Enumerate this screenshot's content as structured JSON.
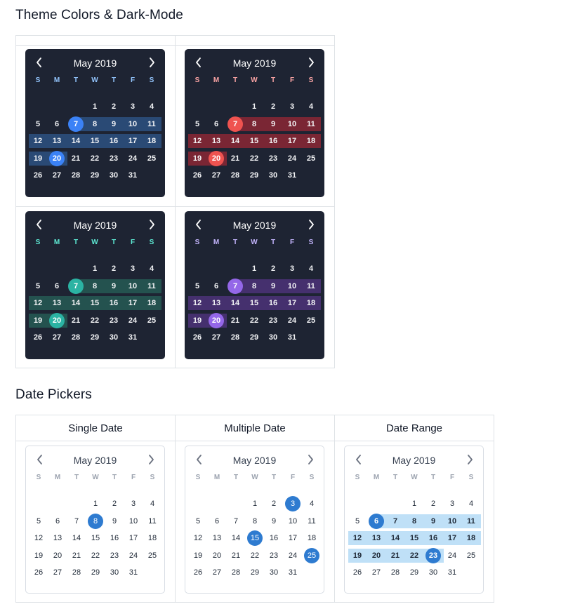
{
  "sections": {
    "theme": {
      "title": "Theme Colors & Dark-Mode"
    },
    "pickers": {
      "title": "Date Pickers"
    }
  },
  "calendar": {
    "title": "May 2019",
    "weekdays": [
      "S",
      "M",
      "T",
      "W",
      "T",
      "F",
      "S"
    ],
    "first_weekday_offset": 3,
    "days_in_month": 31,
    "prev_icon": "chevron-left-icon",
    "next_icon": "chevron-right-icon"
  },
  "theme_calendars": [
    {
      "name": "blue",
      "band_color": "#2a4a75",
      "accent": "#3b82f6",
      "weekday_color": "#93c5fd",
      "highlight_start": 7,
      "highlight_end": 20
    },
    {
      "name": "red",
      "band_color": "#7a2634",
      "accent": "#ef5350",
      "weekday_color": "#fca5a5",
      "highlight_start": 7,
      "highlight_end": 20
    },
    {
      "name": "teal",
      "band_color": "#24524f",
      "accent": "#2bb3a3",
      "weekday_color": "#5eead4",
      "highlight_start": 7,
      "highlight_end": 20
    },
    {
      "name": "purple",
      "band_color": "#45306e",
      "accent": "#9467e8",
      "weekday_color": "#c4b5fd",
      "highlight_start": 7,
      "highlight_end": 20
    }
  ],
  "pickers": [
    {
      "header": "Single Date",
      "mode": "single",
      "selected": [
        8
      ]
    },
    {
      "header": "Multiple Date",
      "mode": "multiple",
      "selected": [
        3,
        15,
        25
      ]
    },
    {
      "header": "Date Range",
      "mode": "range",
      "range_start": 6,
      "range_end": 23,
      "range_band_color": "#bfe0f7"
    }
  ],
  "picker_accent": "#2e7bd0",
  "light_weekday_color": "#9ca3af"
}
